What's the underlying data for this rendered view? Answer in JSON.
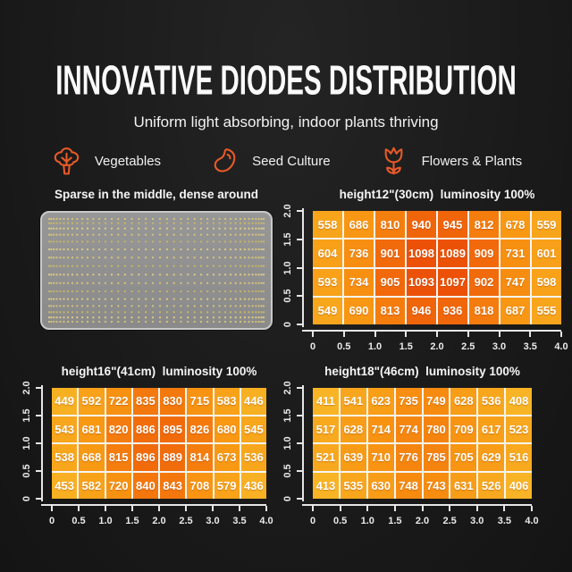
{
  "header": {
    "title": "INNOVATIVE DIODES DISTRIBUTION",
    "subtitle": "Uniform light absorbing, indoor plants thriving",
    "accent_color": "#e85a28",
    "categories": [
      {
        "icon": "broccoli-icon",
        "label": "Vegetables"
      },
      {
        "icon": "seed-icon",
        "label": "Seed Culture"
      },
      {
        "icon": "tulip-icon",
        "label": "Flowers & Plants"
      }
    ]
  },
  "panel": {
    "caption": "Sparse in the middle, dense around",
    "board_color": "#8f8f8f",
    "dot_colors": [
      "#d9c779",
      "#c9b765",
      "#e0ce85"
    ]
  },
  "heat_colors": {
    "stops": [
      {
        "v": 400,
        "c": "#f8b526"
      },
      {
        "v": 700,
        "c": "#f89612"
      },
      {
        "v": 900,
        "c": "#f16a0b"
      },
      {
        "v": 1100,
        "c": "#ec5107"
      }
    ],
    "gridline": "#f5f5f5",
    "axis": "#e6e6e6"
  },
  "chart_data": [
    {
      "type": "heatmap",
      "title": "height12\"(30cm)  luminosity 100%",
      "xlabel": "",
      "ylabel": "",
      "xlim": [
        0,
        4.0
      ],
      "ylim": [
        0,
        2.0
      ],
      "x_ticks": [
        "0",
        "0.5",
        "1.0",
        "1.5",
        "2.0",
        "2.5",
        "3.0",
        "3.5",
        "4.0"
      ],
      "y_ticks": [
        "2.0",
        "1.5",
        "1.0",
        "0.5",
        "0"
      ],
      "values": [
        [
          558,
          686,
          810,
          940,
          945,
          812,
          678,
          559
        ],
        [
          604,
          736,
          901,
          1098,
          1089,
          909,
          731,
          601
        ],
        [
          593,
          734,
          905,
          1093,
          1097,
          902,
          747,
          598
        ],
        [
          549,
          690,
          813,
          946,
          936,
          818,
          687,
          555
        ]
      ]
    },
    {
      "type": "heatmap",
      "title": "height16\"(41cm)  luminosity 100%",
      "xlabel": "",
      "ylabel": "",
      "xlim": [
        0,
        4.0
      ],
      "ylim": [
        0,
        2.0
      ],
      "x_ticks": [
        "0",
        "0.5",
        "1.0",
        "1.5",
        "2.0",
        "2.5",
        "3.0",
        "3.5",
        "4.0"
      ],
      "y_ticks": [
        "2.0",
        "1.5",
        "1.0",
        "0.5",
        "0"
      ],
      "values": [
        [
          449,
          592,
          722,
          835,
          830,
          715,
          583,
          446
        ],
        [
          543,
          681,
          820,
          886,
          895,
          826,
          680,
          545
        ],
        [
          538,
          668,
          815,
          896,
          889,
          814,
          673,
          536
        ],
        [
          453,
          582,
          720,
          840,
          843,
          708,
          579,
          436
        ]
      ]
    },
    {
      "type": "heatmap",
      "title": "height18\"(46cm)  luminosity 100%",
      "xlabel": "",
      "ylabel": "",
      "xlim": [
        0,
        4.0
      ],
      "ylim": [
        0,
        2.0
      ],
      "x_ticks": [
        "0",
        "0.5",
        "1.0",
        "1.5",
        "2.0",
        "2.5",
        "3.0",
        "3.5",
        "4.0"
      ],
      "y_ticks": [
        "2.0",
        "1.5",
        "1.0",
        "0.5",
        "0"
      ],
      "values": [
        [
          411,
          541,
          623,
          735,
          749,
          628,
          536,
          408
        ],
        [
          517,
          628,
          714,
          774,
          780,
          709,
          617,
          523
        ],
        [
          521,
          639,
          710,
          776,
          785,
          705,
          629,
          516
        ],
        [
          413,
          535,
          630,
          748,
          743,
          631,
          526,
          406
        ]
      ]
    }
  ]
}
